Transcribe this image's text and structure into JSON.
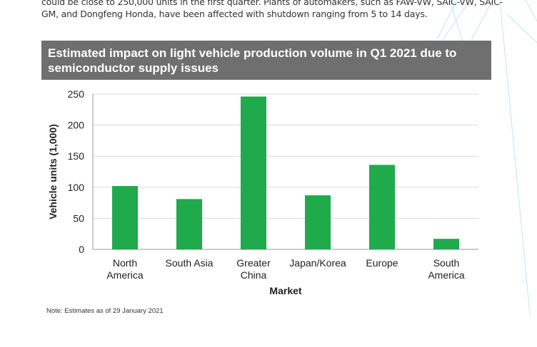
{
  "intro": {
    "line1": "could be close to 250,000 units in the first quarter. Plants of automakers, such as FAW-VW, SAIC-VW, SAIC-",
    "line2": "GM, and Dongfeng Honda, have been affected with shutdown ranging from 5 to 14 days."
  },
  "chart_data": {
    "type": "bar",
    "title": "Estimated impact on light vehicle production volume in Q1 2021 due to semiconductor supply issues",
    "categories": [
      [
        "North",
        "America"
      ],
      [
        "South Asia"
      ],
      [
        "Greater",
        "China"
      ],
      [
        "Japan/Korea"
      ],
      [
        "Europe"
      ],
      [
        "South",
        "America"
      ]
    ],
    "values": [
      102,
      81,
      246,
      87,
      136,
      17
    ],
    "xlabel": "Market",
    "ylabel": "Vehicle units (1,000)",
    "ylim": [
      0,
      250
    ],
    "yticks": [
      0,
      50,
      100,
      150,
      200,
      250
    ],
    "grid": true,
    "legend": "none",
    "bar_color": "#1faa4b"
  },
  "note": "Note: Estimates as of 29 January 2021"
}
